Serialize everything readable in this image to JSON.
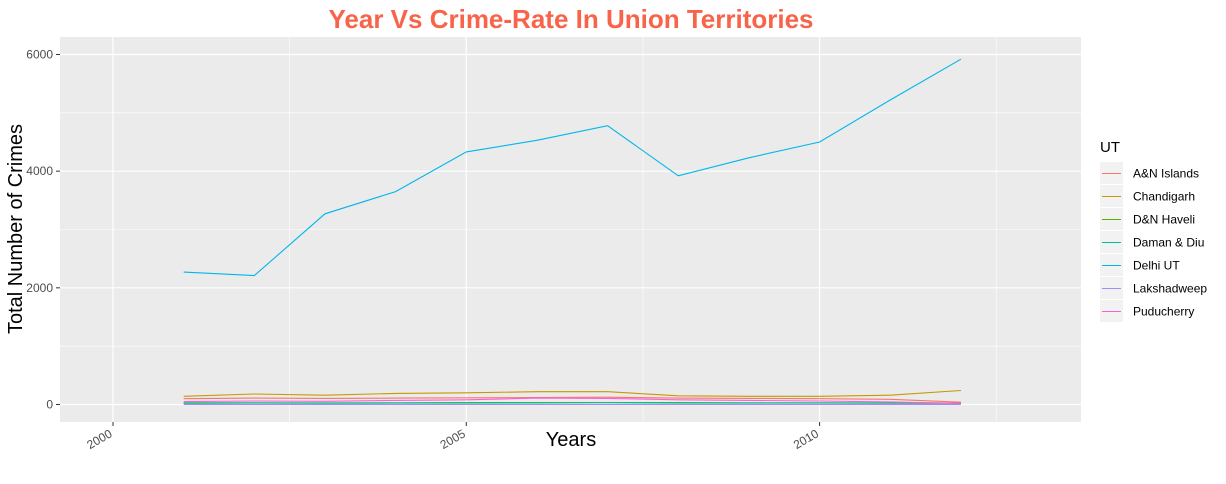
{
  "chart_data": {
    "type": "line",
    "title": "Year Vs Crime-Rate In Union Territories",
    "xlabel": "Years",
    "ylabel": "Total Number of Crimes",
    "xlim": [
      1999.25,
      2013.7
    ],
    "ylim": [
      -300,
      6300
    ],
    "x_ticks": [
      2000,
      2005,
      2010
    ],
    "y_ticks": [
      0,
      2000,
      4000,
      6000
    ],
    "grid": true,
    "legend_title": "UT",
    "legend_position": "right",
    "x": [
      2001,
      2002,
      2003,
      2004,
      2005,
      2006,
      2007,
      2008,
      2009,
      2010,
      2011,
      2012
    ],
    "series": [
      {
        "name": "A&N Islands",
        "color": "#F8766D",
        "values": [
          100,
          110,
          105,
          110,
          115,
          120,
          125,
          110,
          105,
          100,
          90,
          40
        ]
      },
      {
        "name": "Chandigarh",
        "color": "#C49A00",
        "values": [
          140,
          180,
          160,
          190,
          200,
          220,
          220,
          150,
          140,
          140,
          160,
          240
        ]
      },
      {
        "name": "D&N Haveli",
        "color": "#53B400",
        "values": [
          20,
          25,
          22,
          25,
          28,
          30,
          32,
          28,
          25,
          25,
          22,
          20
        ]
      },
      {
        "name": "Daman & Diu",
        "color": "#00C094",
        "values": [
          30,
          30,
          28,
          30,
          32,
          35,
          35,
          32,
          30,
          30,
          28,
          25
        ]
      },
      {
        "name": "Delhi UT",
        "color": "#00B6EB",
        "values": [
          2270,
          2210,
          3270,
          3650,
          4330,
          4530,
          4780,
          3920,
          4230,
          4500,
          5220,
          5920
        ]
      },
      {
        "name": "Lakshadweep",
        "color": "#A58AFF",
        "values": [
          2,
          2,
          2,
          2,
          2,
          2,
          2,
          2,
          2,
          2,
          2,
          2
        ]
      },
      {
        "name": "Puducherry",
        "color": "#FB61D7",
        "values": [
          50,
          60,
          55,
          70,
          80,
          110,
          105,
          80,
          70,
          60,
          45,
          20
        ]
      }
    ]
  }
}
